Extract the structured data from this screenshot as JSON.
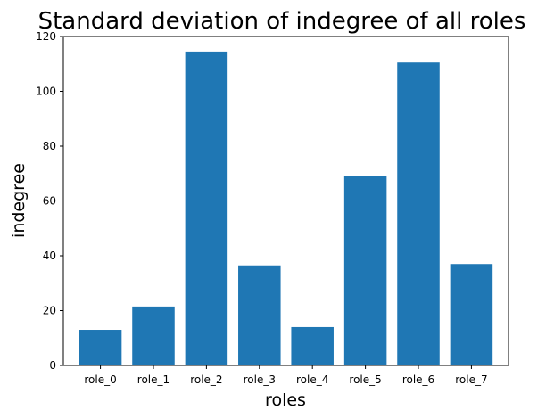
{
  "chart_data": {
    "type": "bar",
    "title": "Standard deviation of indegree of all roles",
    "xlabel": "roles",
    "ylabel": "indegree",
    "categories": [
      "role_0",
      "role_1",
      "role_2",
      "role_3",
      "role_4",
      "role_5",
      "role_6",
      "role_7"
    ],
    "values": [
      13,
      21.5,
      114.5,
      36.5,
      14,
      69,
      110.5,
      37
    ],
    "ylim": [
      0,
      120
    ],
    "yticks": [
      "0",
      "20",
      "40",
      "60",
      "80",
      "100",
      "120"
    ],
    "grid": false,
    "legend": "none",
    "colors": {
      "bar": "#1f77b4",
      "axes": "#000000",
      "background": "#ffffff"
    }
  }
}
